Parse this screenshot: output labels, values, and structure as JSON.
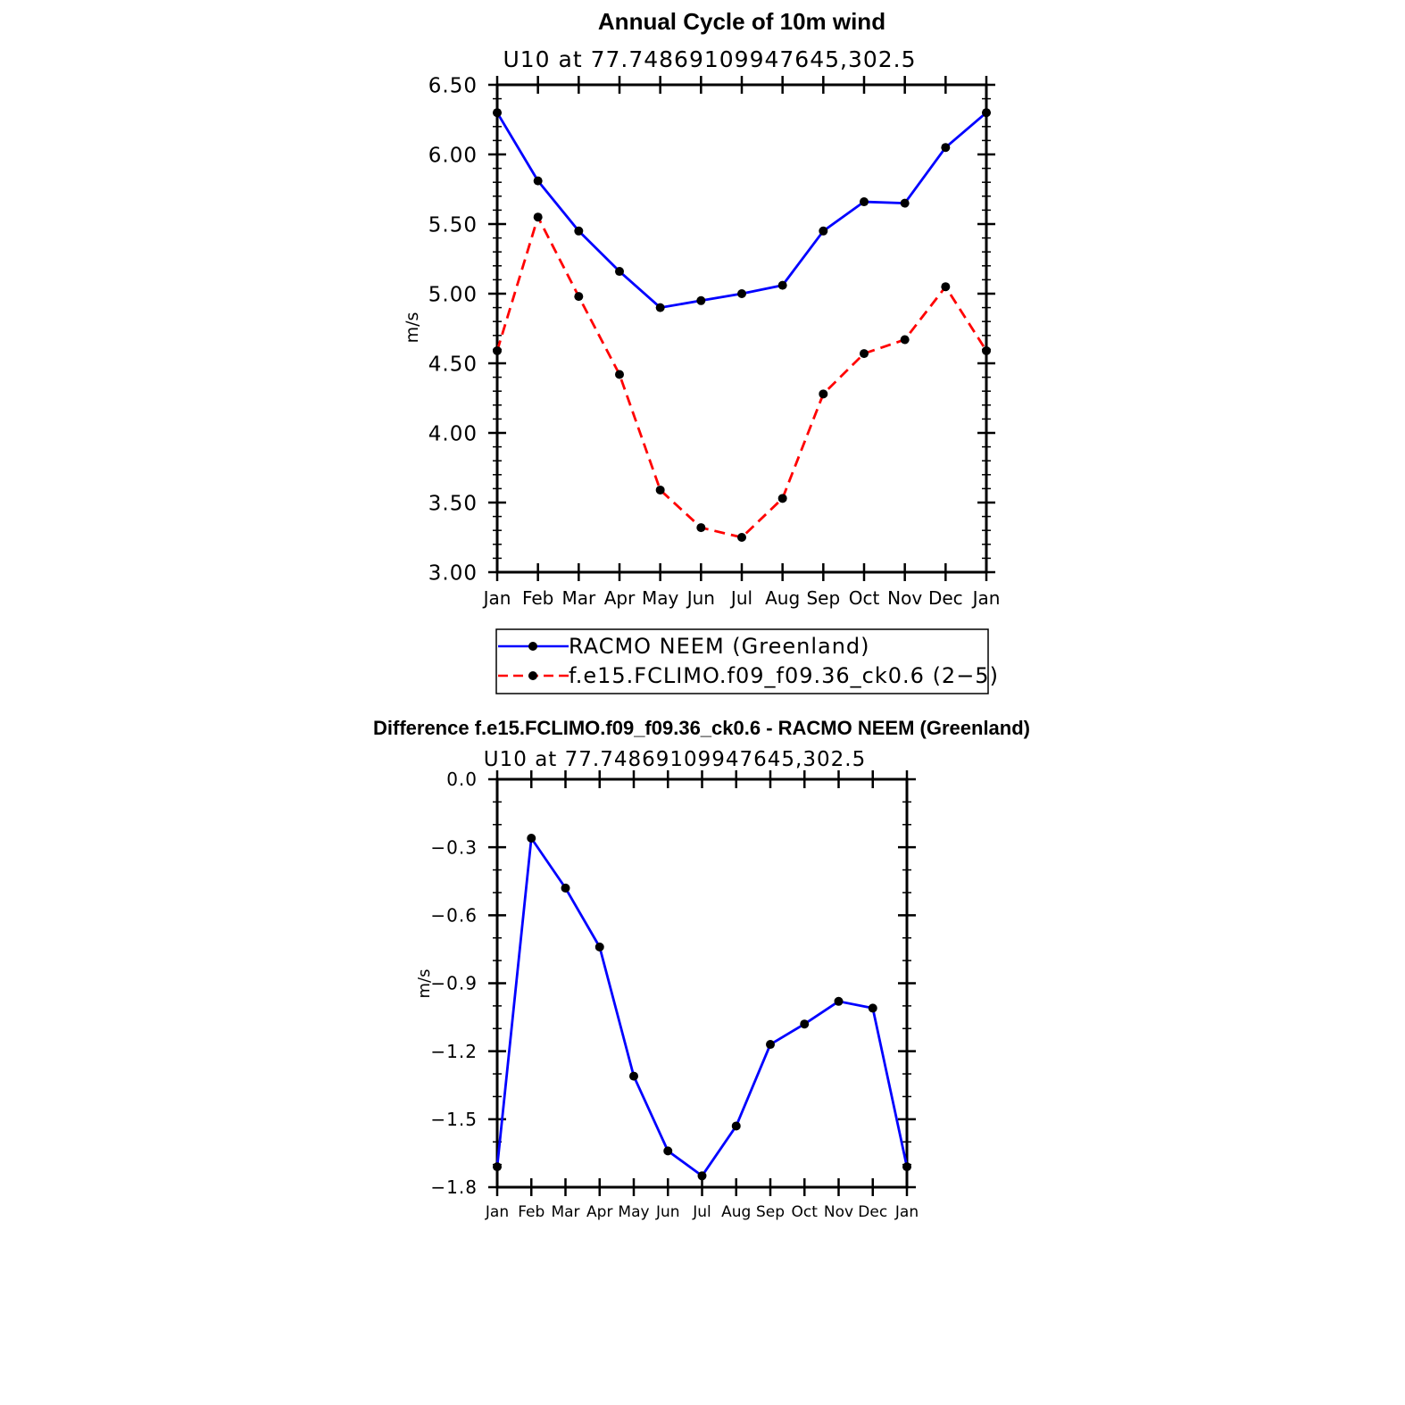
{
  "chart_data": [
    {
      "type": "line",
      "title": "Annual Cycle of 10m wind",
      "subtitle": "U10 at 77.74869109947645,302.5",
      "xlabel": "",
      "ylabel": "m/s",
      "categories": [
        "Jan",
        "Feb",
        "Mar",
        "Apr",
        "May",
        "Jun",
        "Jul",
        "Aug",
        "Sep",
        "Oct",
        "Nov",
        "Dec",
        "Jan"
      ],
      "ylim": [
        3.0,
        6.5
      ],
      "yticks": [
        "3.00",
        "3.50",
        "4.00",
        "4.50",
        "5.00",
        "5.50",
        "6.00",
        "6.50"
      ],
      "legend_position": "bottom",
      "series": [
        {
          "name": "RACMO NEEM (Greenland)",
          "color": "#0000ff",
          "dash": "solid",
          "values": [
            6.3,
            5.81,
            5.45,
            5.16,
            4.9,
            4.95,
            5.0,
            5.06,
            5.45,
            5.66,
            5.65,
            6.05,
            6.3
          ]
        },
        {
          "name": "f.e15.FCLIMO.f09_f09.36_ck0.6 (2−5)",
          "color": "#ff0000",
          "dash": "dashed",
          "values": [
            4.59,
            5.55,
            4.98,
            4.42,
            3.59,
            3.32,
            3.25,
            3.53,
            4.28,
            4.57,
            4.67,
            5.05,
            4.59
          ]
        }
      ]
    },
    {
      "type": "line",
      "title": "Difference f.e15.FCLIMO.f09_f09.36_ck0.6 - RACMO NEEM (Greenland)",
      "subtitle": "U10 at 77.74869109947645,302.5",
      "xlabel": "",
      "ylabel": "m/s",
      "categories": [
        "Jan",
        "Feb",
        "Mar",
        "Apr",
        "May",
        "Jun",
        "Jul",
        "Aug",
        "Sep",
        "Oct",
        "Nov",
        "Dec",
        "Jan"
      ],
      "ylim": [
        -1.8,
        0.0
      ],
      "yticks": [
        "−1.8",
        "−1.5",
        "−1.2",
        "−0.9",
        "−0.6",
        "−0.3",
        "0.0"
      ],
      "series": [
        {
          "color": "#0000ff",
          "dash": "solid",
          "values": [
            -1.71,
            -0.26,
            -0.48,
            -0.74,
            -1.31,
            -1.64,
            -1.75,
            -1.53,
            -1.17,
            -1.08,
            -0.98,
            -1.01,
            -1.71
          ]
        }
      ]
    }
  ]
}
